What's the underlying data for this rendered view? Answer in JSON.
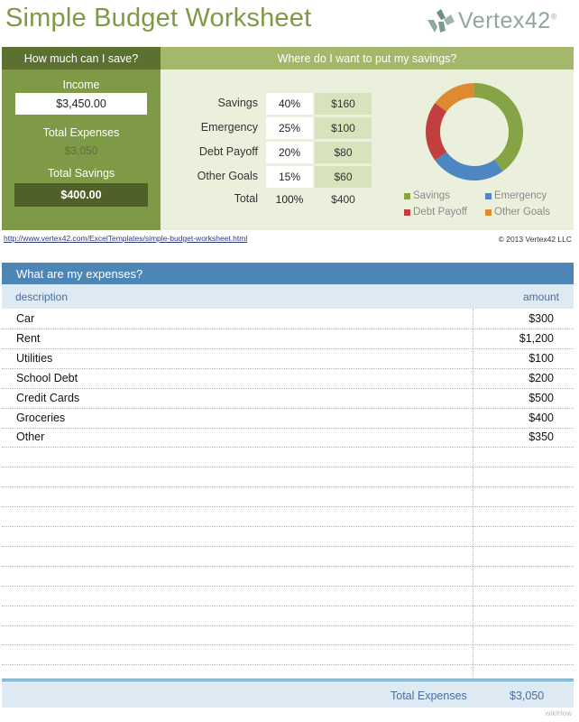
{
  "header": {
    "title": "Simple Budget Worksheet",
    "logo_text": "Vertex42",
    "logo_tm": "®"
  },
  "left": {
    "heading": "How much can I save?",
    "income_label": "Income",
    "income_value": "$3,450.00",
    "expenses_label": "Total Expenses",
    "expenses_value": "$3,050",
    "savings_label": "Total Savings",
    "savings_value": "$400.00"
  },
  "right": {
    "heading": "Where do I want to put my savings?",
    "rows": [
      {
        "label": "Savings",
        "pct": "40%",
        "amount": "$160"
      },
      {
        "label": "Emergency",
        "pct": "25%",
        "amount": "$100"
      },
      {
        "label": "Debt Payoff",
        "pct": "20%",
        "amount": "$80"
      },
      {
        "label": "Other Goals",
        "pct": "15%",
        "amount": "$60"
      }
    ],
    "total": {
      "label": "Total",
      "pct": "100%",
      "amount": "$400"
    }
  },
  "chart_data": {
    "type": "pie",
    "donut": true,
    "categories": [
      "Savings",
      "Emergency",
      "Debt Payoff",
      "Other Goals"
    ],
    "values": [
      40,
      25,
      20,
      15
    ],
    "colors": [
      "#86a445",
      "#4e86c2",
      "#c23f3f",
      "#de8a32"
    ],
    "legend_position": "bottom"
  },
  "footer_links": {
    "url": "http://www.vertex42.com/ExcelTemplates/simple-budget-worksheet.html",
    "copyright": "© 2013 Vertex42 LLC"
  },
  "expenses": {
    "heading": "What are my expenses?",
    "col_description": "description",
    "col_amount": "amount",
    "items": [
      {
        "description": "Car",
        "amount": "$300"
      },
      {
        "description": "Rent",
        "amount": "$1,200"
      },
      {
        "description": "Utilities",
        "amount": "$100"
      },
      {
        "description": "School Debt",
        "amount": "$200"
      },
      {
        "description": "Credit Cards",
        "amount": "$500"
      },
      {
        "description": "Groceries",
        "amount": "$400"
      },
      {
        "description": "Other",
        "amount": "$350"
      }
    ],
    "total_label": "Total Expenses",
    "total_value": "$3,050"
  },
  "watermark": "wikiHow"
}
